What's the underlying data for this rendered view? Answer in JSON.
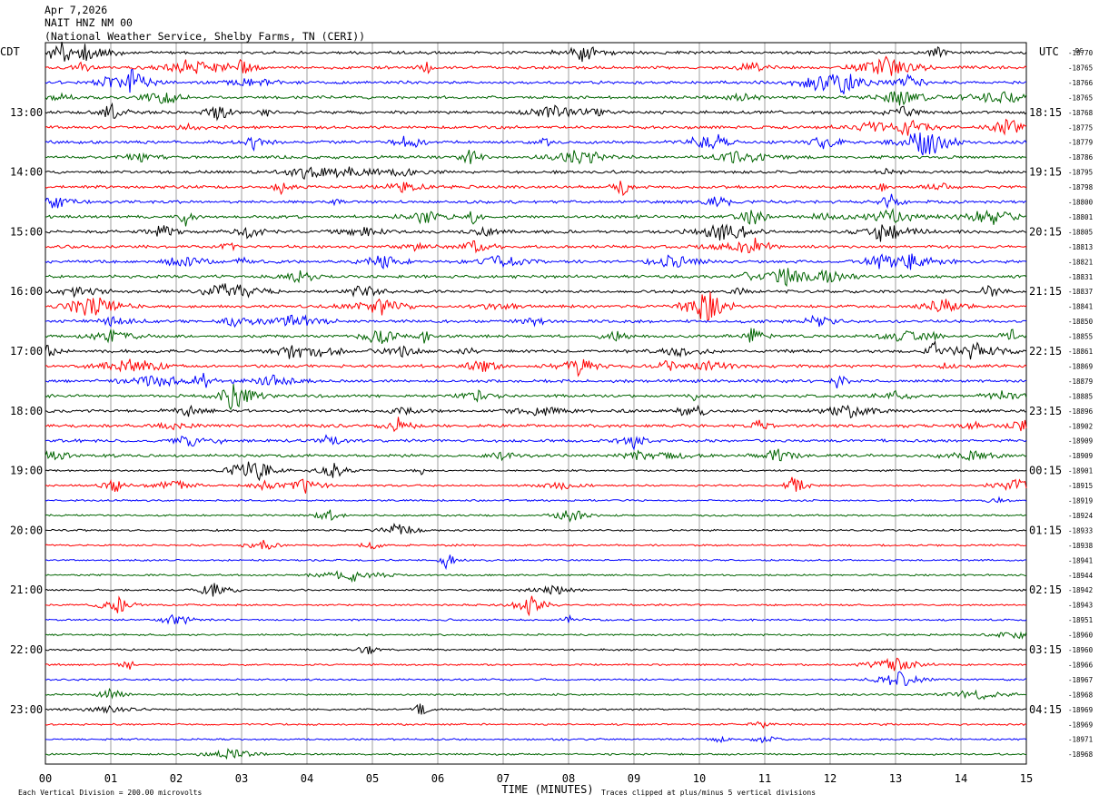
{
  "header": {
    "date": "Apr 7,2026",
    "station": "NAIT HNZ NM 00",
    "location": "(National Weather Service, Shelby Farms, TN (CERI))"
  },
  "chart_data": {
    "type": "line",
    "title": "Apr 7,2026",
    "left_axis_title": "CDT",
    "right_axis_title": "UTC",
    "right_axis_top_label": "DC",
    "xlabel": "TIME (MINUTES)",
    "x_range": [
      0,
      15
    ],
    "x_ticks": [
      "00",
      "01",
      "02",
      "03",
      "04",
      "05",
      "06",
      "07",
      "08",
      "09",
      "10",
      "11",
      "12",
      "13",
      "14",
      "15"
    ],
    "grid": true,
    "trace_colors": [
      "#000000",
      "#ff0000",
      "#0000ff",
      "#006400"
    ],
    "rows_per_hour": 4,
    "left_time_labels": [
      "13:00",
      "14:00",
      "15:00",
      "16:00",
      "17:00",
      "18:00",
      "19:00",
      "20:00",
      "21:00",
      "22:00",
      "23:00"
    ],
    "right_time_labels": [
      "18:15",
      "19:15",
      "20:15",
      "21:15",
      "22:15",
      "23:15",
      "00:15",
      "01:15",
      "02:15",
      "03:15",
      "04:15"
    ],
    "first_labeled_row": 4,
    "dc_offsets": [
      -18770,
      -18765,
      -18766,
      -18765,
      -18768,
      -18775,
      -18779,
      -18786,
      -18795,
      -18798,
      -18800,
      -18801,
      -18805,
      -18813,
      -18821,
      -18831,
      -18837,
      -18841,
      -18850,
      -18855,
      -18861,
      -18869,
      -18879,
      -18885,
      -18896,
      -18902,
      -18909,
      -18909,
      -18901,
      -18915,
      -18919,
      -18924,
      -18933,
      -18938,
      -18941,
      -18944,
      -18942,
      -18943,
      -18951,
      -18960,
      -18960,
      -18966,
      -18967,
      -18968,
      -18969,
      -18969,
      -18971,
      -18968
    ],
    "footer_left": "Each Vertical Division =  200.00 microvolts",
    "footer_right": "Traces clipped at plus/minus 5 vertical divisions"
  }
}
